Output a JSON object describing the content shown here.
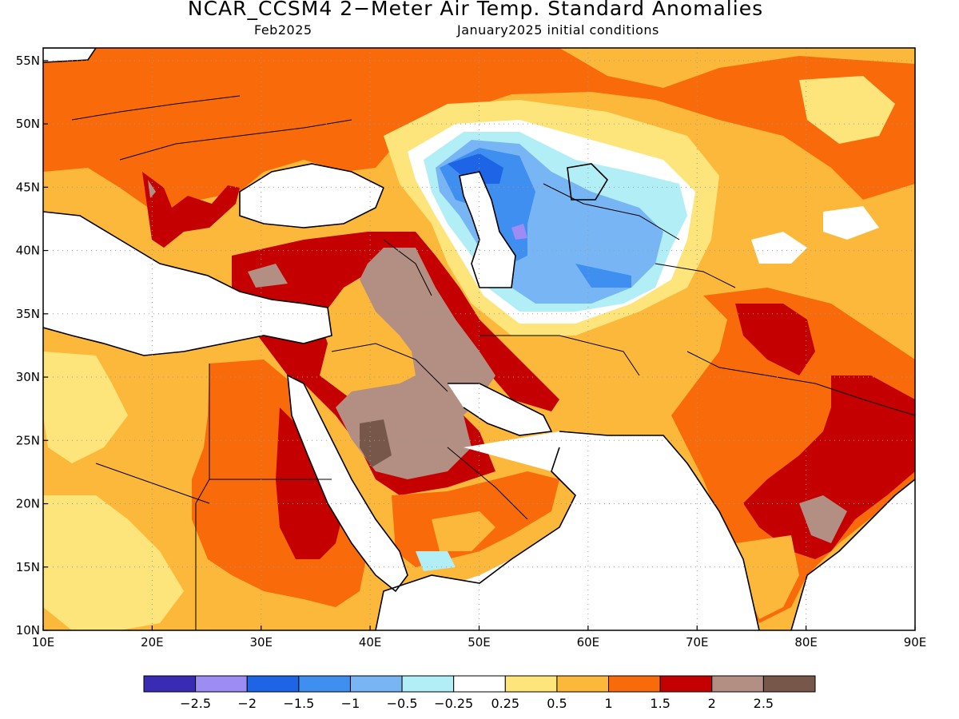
{
  "title": "NCAR_CCSM4 2−Meter Air Temp. Standard Anomalies",
  "subtitle_left": "Feb2025",
  "subtitle_right": "January2025 initial conditions",
  "map": {
    "lon_range": [
      10,
      90
    ],
    "lat_range": [
      10,
      56
    ],
    "lon_ticks": [
      "10E",
      "20E",
      "30E",
      "40E",
      "50E",
      "60E",
      "70E",
      "80E",
      "90E"
    ],
    "lat_ticks": [
      "10N",
      "15N",
      "20N",
      "25N",
      "30N",
      "35N",
      "40N",
      "45N",
      "50N",
      "55N"
    ],
    "grid": "dotted",
    "land_outline_color": "#000000",
    "ocean_color": "#ffffff"
  },
  "colorbar": {
    "colors": [
      "#3a2bb5",
      "#9e8cf5",
      "#1e64e6",
      "#3f8ff0",
      "#77b5f5",
      "#b2eef5",
      "#ffffff",
      "#fde57c",
      "#fcb83a",
      "#f96a0a",
      "#c40000",
      "#b38f83",
      "#77574a"
    ],
    "labels": [
      "−2.5",
      "−2",
      "−1.5",
      "−1",
      "−0.5",
      "−0.25",
      "0.25",
      "0.5",
      "1",
      "1.5",
      "2",
      "2.5"
    ]
  }
}
